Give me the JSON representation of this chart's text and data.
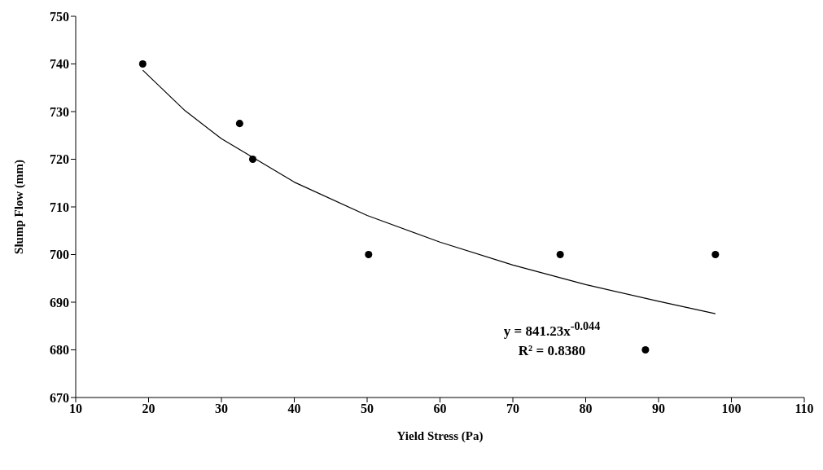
{
  "chart_data": {
    "type": "scatter",
    "xlabel": "Yield Stress (Pa)",
    "ylabel": "Slump Flow (mm)",
    "xlim": [
      10,
      110
    ],
    "xticks": [
      10,
      20,
      30,
      40,
      50,
      60,
      70,
      80,
      90,
      100,
      110
    ],
    "ylim": [
      670,
      750
    ],
    "yticks": [
      670,
      680,
      690,
      700,
      710,
      720,
      730,
      740,
      750
    ],
    "grid": false,
    "series": [
      {
        "type": "scatter",
        "marker": "circle",
        "color": "#000000",
        "x": [
          19.2,
          32.5,
          34.3,
          50.2,
          76.5,
          88.2,
          97.8
        ],
        "values": [
          740,
          727.5,
          720,
          700,
          700,
          680,
          700
        ]
      },
      {
        "type": "line",
        "marker": "none",
        "line_style": "solid",
        "color": "#000000",
        "x": [
          19.2,
          25,
          30,
          40,
          50,
          60,
          70,
          80,
          90,
          97.8
        ],
        "values": [
          738.7,
          730.2,
          724.3,
          715.2,
          708.2,
          702.6,
          697.8,
          693.7,
          690.2,
          687.6
        ]
      }
    ],
    "annotations": [
      "y = 841.23x$^{-0.044}$",
      "R² = 0.8380"
    ]
  }
}
